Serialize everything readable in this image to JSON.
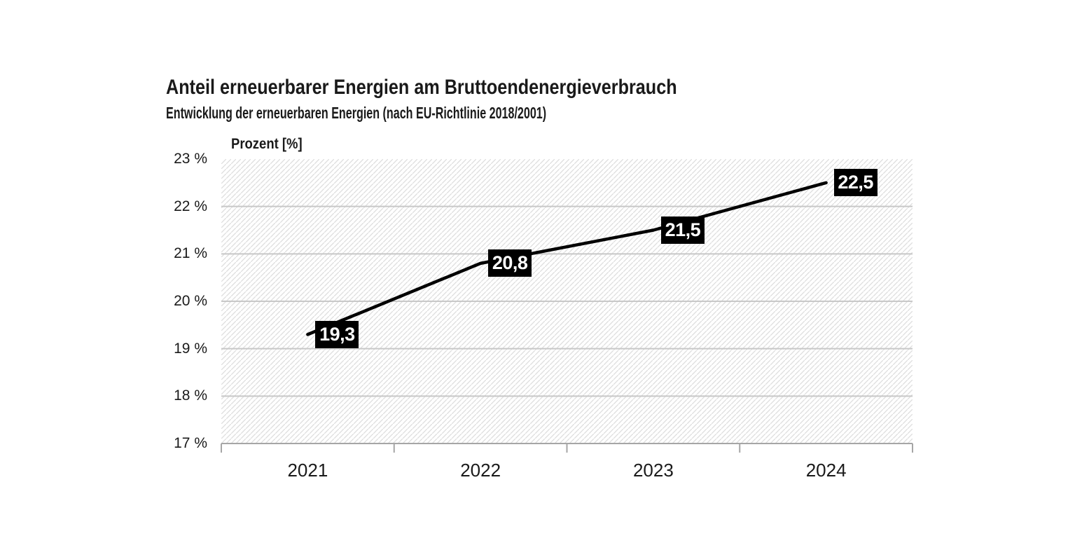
{
  "chart_data": {
    "type": "line",
    "title": "Anteil erneuerbarer Energien am Bruttoendenergieverbrauch",
    "subtitle": "Entwicklung der erneuerbaren Energien (nach EU-Richtlinie 2018/2001)",
    "ylabel": "Prozent [%]",
    "xlabel": "",
    "categories": [
      "2021",
      "2022",
      "2023",
      "2024"
    ],
    "values": [
      19.3,
      20.8,
      21.5,
      22.5
    ],
    "value_labels": [
      "19,3",
      "20,8",
      "21,5",
      "22,5"
    ],
    "ylim": [
      17,
      23
    ],
    "y_tick_step": 1,
    "y_tick_labels": [
      "23 %",
      "22 %",
      "21 %",
      "20 %",
      "19 %",
      "18 %",
      "17 %"
    ],
    "grid": "horizontal",
    "legend": "none",
    "plot_background": "diagonal-hatch",
    "colors": {
      "line": "#000000",
      "label_background": "#000000",
      "label_text": "#ffffff",
      "grid": "#c8c8c8",
      "axis": "#a6a6a6",
      "hatch": "#dedede",
      "text": "#1a1a1a",
      "background": "#ffffff"
    }
  }
}
